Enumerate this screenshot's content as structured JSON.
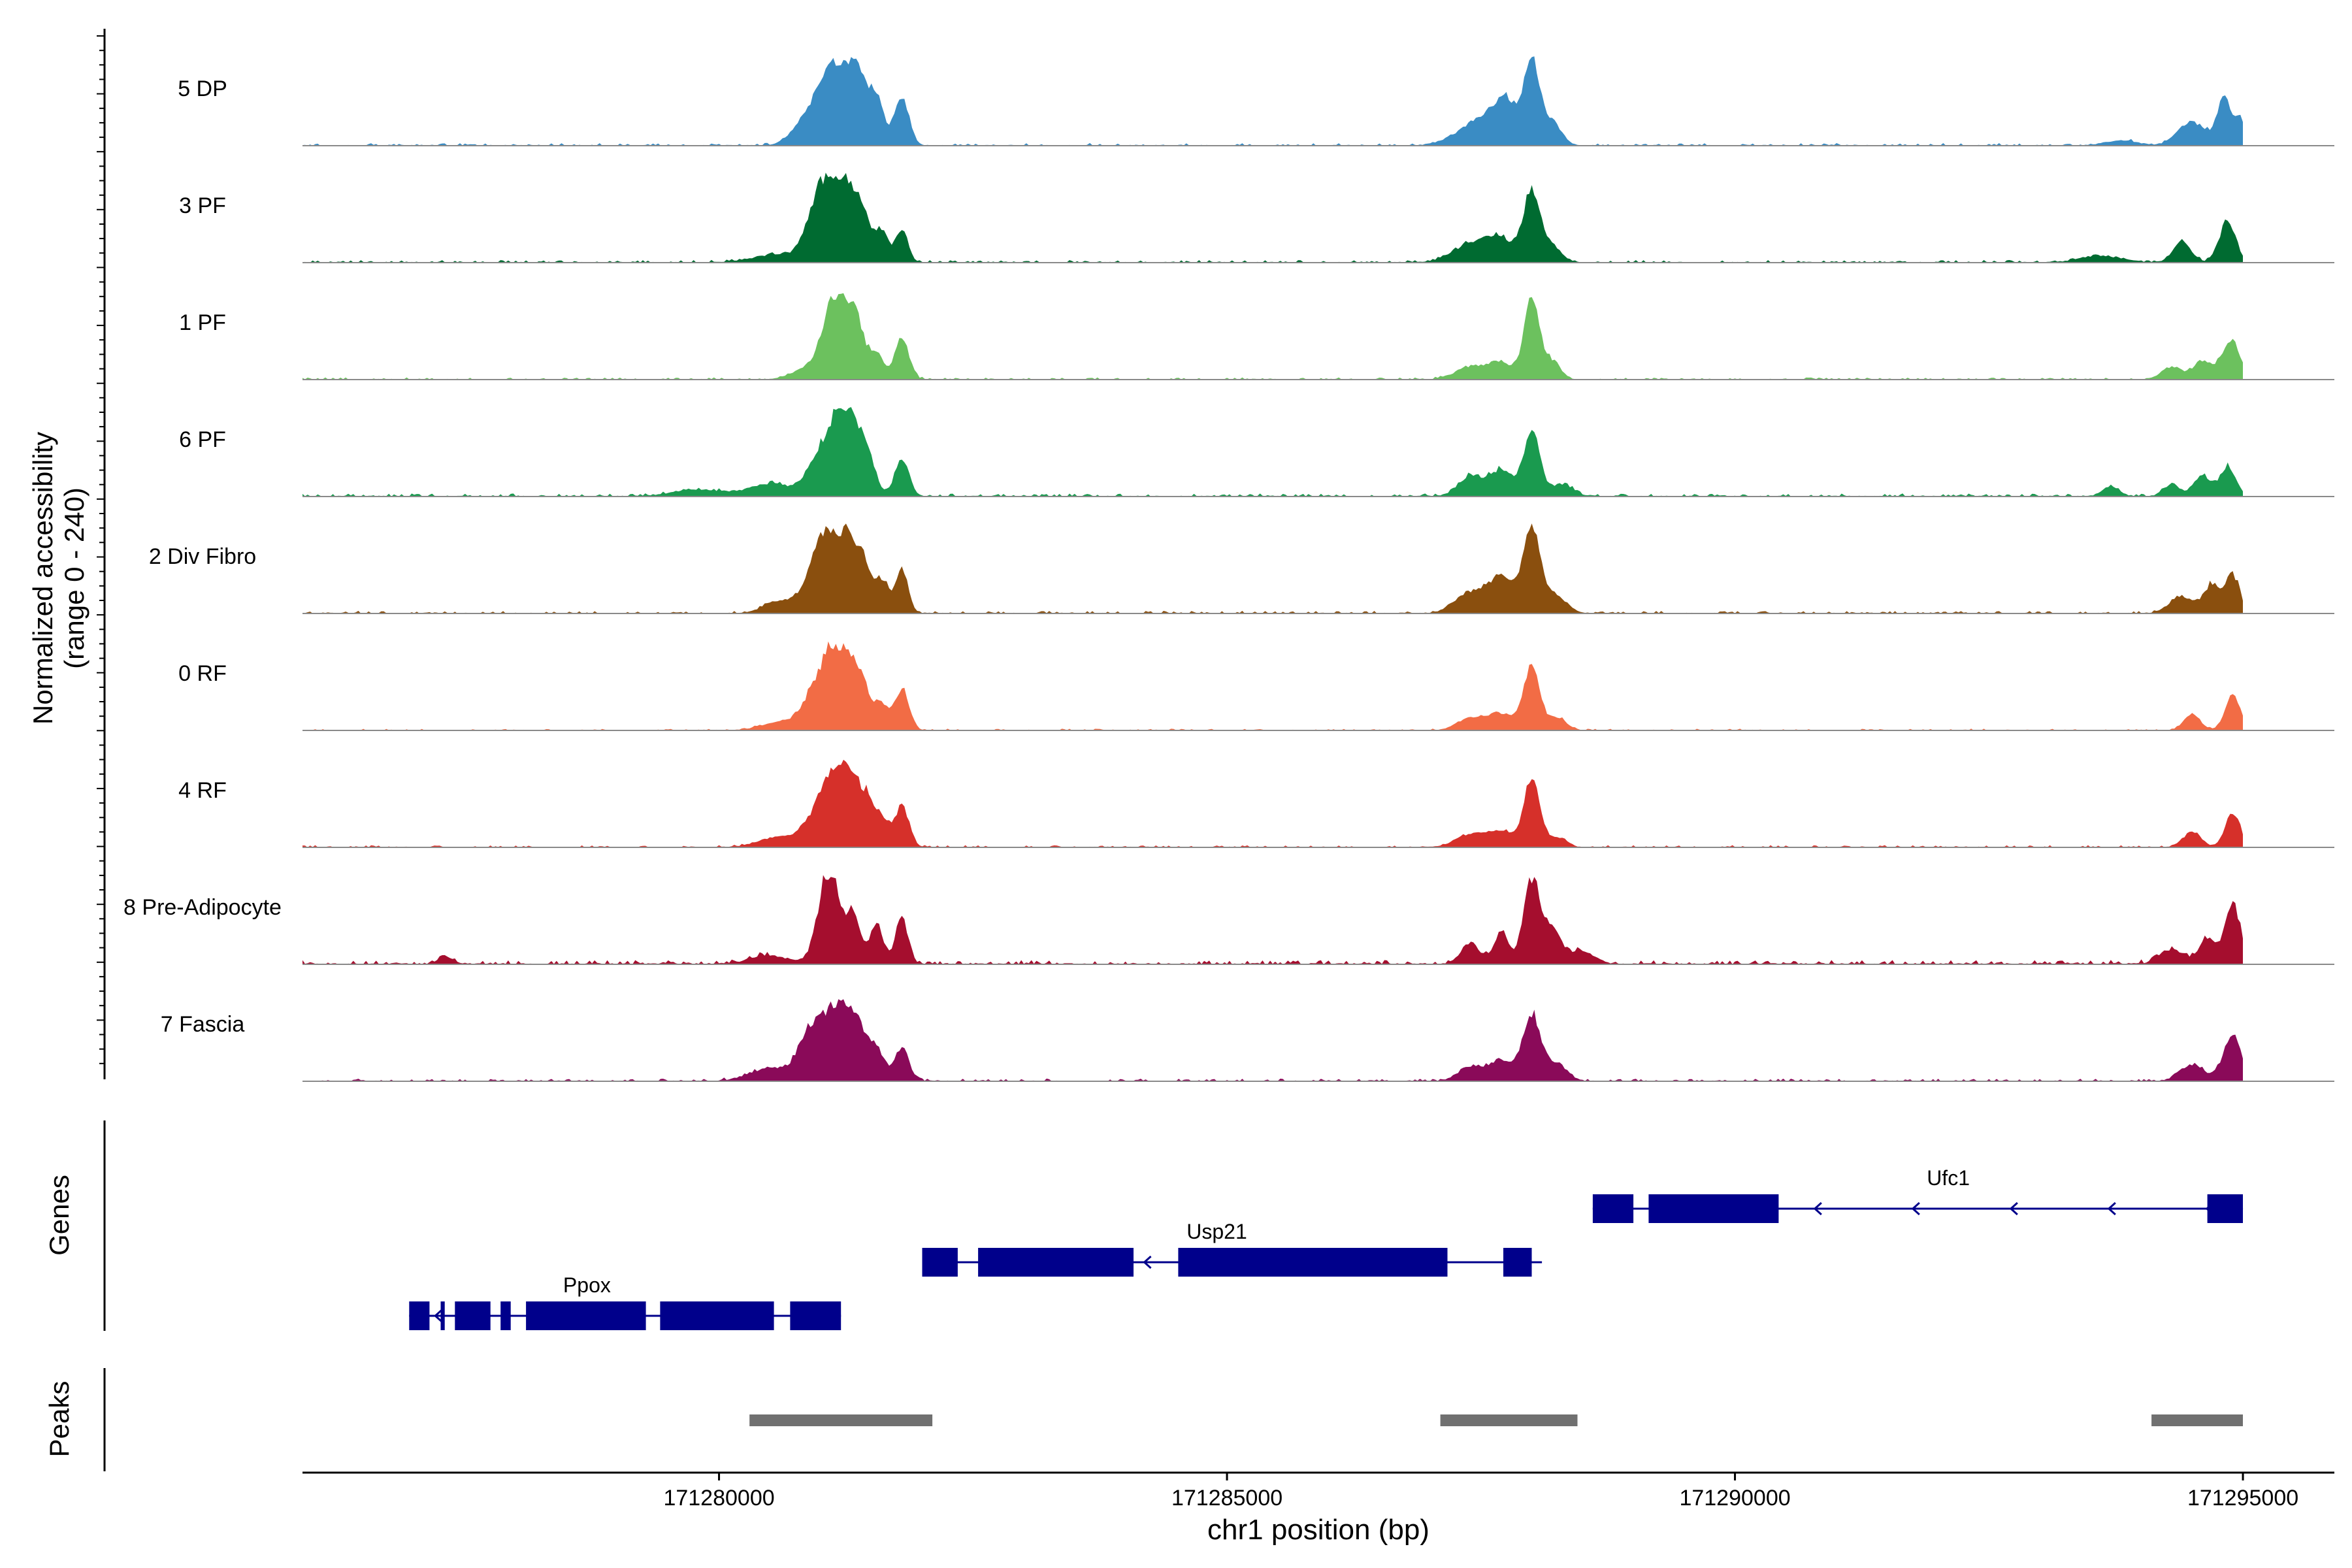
{
  "chart_data": {
    "type": "area",
    "title": "",
    "ylabel_line1": "Normalized accessibility",
    "ylabel_line2": "(range 0 - 240)",
    "ylim": [
      0,
      240
    ],
    "xlabel": "chr1 position (bp)",
    "xlim": [
      171275900,
      171295900
    ],
    "xticks": [
      {
        "value": 171280000,
        "label": "171280000"
      },
      {
        "value": 171285000,
        "label": "171285000"
      },
      {
        "value": 171290000,
        "label": "171290000"
      },
      {
        "value": 171295000,
        "label": "171295000"
      }
    ],
    "signal_range": [
      171275900,
      171295000
    ],
    "series": [
      {
        "name": "5 DP",
        "color": "#3a8cc4",
        "peaks": [
          [
            171281100,
            0.95,
            150
          ],
          [
            171281350,
            0.7,
            110
          ],
          [
            171281550,
            0.48,
            80
          ],
          [
            171281800,
            0.58,
            70
          ],
          [
            171280800,
            0.18,
            120
          ],
          [
            171287500,
            0.3,
            220
          ],
          [
            171287750,
            0.42,
            120
          ],
          [
            171288000,
            1.0,
            75
          ],
          [
            171288200,
            0.28,
            90
          ],
          [
            171293800,
            0.06,
            150
          ],
          [
            171294500,
            0.28,
            140
          ],
          [
            171294820,
            0.55,
            70
          ],
          [
            171294980,
            0.3,
            50
          ]
        ],
        "noise": 0.03
      },
      {
        "name": "3 PF",
        "color": "#006b31",
        "peaks": [
          [
            171281000,
            0.8,
            120
          ],
          [
            171281200,
            0.95,
            110
          ],
          [
            171281400,
            0.55,
            90
          ],
          [
            171281600,
            0.35,
            70
          ],
          [
            171281800,
            0.4,
            60
          ],
          [
            171280600,
            0.1,
            250
          ],
          [
            171287400,
            0.22,
            180
          ],
          [
            171287700,
            0.25,
            150
          ],
          [
            171288000,
            0.85,
            80
          ],
          [
            171288200,
            0.2,
            90
          ],
          [
            171293600,
            0.08,
            200
          ],
          [
            171294400,
            0.25,
            90
          ],
          [
            171294850,
            0.5,
            80
          ]
        ],
        "noise": 0.03
      },
      {
        "name": "1 PF",
        "color": "#6cc15e",
        "peaks": [
          [
            171281150,
            1.0,
            130
          ],
          [
            171281350,
            0.55,
            80
          ],
          [
            171281550,
            0.3,
            70
          ],
          [
            171281800,
            0.5,
            70
          ],
          [
            171280800,
            0.1,
            120
          ],
          [
            171287400,
            0.15,
            150
          ],
          [
            171287700,
            0.2,
            120
          ],
          [
            171288000,
            1.0,
            75
          ],
          [
            171288200,
            0.22,
            80
          ],
          [
            171294300,
            0.15,
            100
          ],
          [
            171294600,
            0.22,
            90
          ],
          [
            171294880,
            0.48,
            90
          ]
        ],
        "noise": 0.025
      },
      {
        "name": "6 PF",
        "color": "#1a9a4f",
        "peaks": [
          [
            171281050,
            0.6,
            150
          ],
          [
            171281250,
            0.85,
            110
          ],
          [
            171281450,
            0.5,
            80
          ],
          [
            171281800,
            0.45,
            70
          ],
          [
            171280500,
            0.15,
            200
          ],
          [
            171279800,
            0.08,
            250
          ],
          [
            171287400,
            0.25,
            120
          ],
          [
            171287700,
            0.3,
            110
          ],
          [
            171288000,
            0.82,
            80
          ],
          [
            171288300,
            0.15,
            100
          ],
          [
            171293700,
            0.12,
            80
          ],
          [
            171294300,
            0.15,
            80
          ],
          [
            171294600,
            0.25,
            80
          ],
          [
            171294850,
            0.35,
            80
          ]
        ],
        "noise": 0.035
      },
      {
        "name": "2 Div Fibro",
        "color": "#8a4f0e",
        "peaks": [
          [
            171281000,
            0.8,
            130
          ],
          [
            171281200,
            0.9,
            110
          ],
          [
            171281400,
            0.6,
            80
          ],
          [
            171281600,
            0.4,
            70
          ],
          [
            171281800,
            0.55,
            60
          ],
          [
            171280600,
            0.15,
            150
          ],
          [
            171287400,
            0.25,
            150
          ],
          [
            171287700,
            0.4,
            120
          ],
          [
            171288000,
            1.0,
            90
          ],
          [
            171288250,
            0.2,
            100
          ],
          [
            171294400,
            0.2,
            120
          ],
          [
            171294700,
            0.35,
            80
          ],
          [
            171294900,
            0.45,
            70
          ]
        ],
        "noise": 0.03
      },
      {
        "name": "0 RF",
        "color": "#f26c45",
        "peaks": [
          [
            171281000,
            0.6,
            140
          ],
          [
            171281200,
            0.9,
            110
          ],
          [
            171281400,
            0.55,
            80
          ],
          [
            171281600,
            0.3,
            70
          ],
          [
            171281800,
            0.5,
            70
          ],
          [
            171280600,
            0.1,
            180
          ],
          [
            171287400,
            0.15,
            130
          ],
          [
            171287700,
            0.2,
            120
          ],
          [
            171288000,
            0.75,
            80
          ],
          [
            171288250,
            0.15,
            90
          ],
          [
            171294500,
            0.2,
            80
          ],
          [
            171294900,
            0.42,
            75
          ]
        ],
        "noise": 0.02
      },
      {
        "name": "4 RF",
        "color": "#d6302a",
        "peaks": [
          [
            171281050,
            0.6,
            150
          ],
          [
            171281250,
            0.92,
            110
          ],
          [
            171281450,
            0.45,
            70
          ],
          [
            171281600,
            0.35,
            70
          ],
          [
            171281800,
            0.5,
            70
          ],
          [
            171280600,
            0.12,
            200
          ],
          [
            171287400,
            0.15,
            150
          ],
          [
            171287700,
            0.18,
            120
          ],
          [
            171288000,
            0.8,
            80
          ],
          [
            171288250,
            0.12,
            90
          ],
          [
            171294500,
            0.18,
            90
          ],
          [
            171294900,
            0.4,
            75
          ]
        ],
        "noise": 0.025
      },
      {
        "name": "8 Pre-Adipocyte",
        "color": "#a50e2e",
        "peaks": [
          [
            171281100,
            1.0,
            70
          ],
          [
            171281300,
            0.65,
            80
          ],
          [
            171281000,
            0.45,
            80
          ],
          [
            171281550,
            0.45,
            70
          ],
          [
            171281800,
            0.58,
            60
          ],
          [
            171280500,
            0.1,
            200
          ],
          [
            171277300,
            0.1,
            60
          ],
          [
            171287400,
            0.25,
            90
          ],
          [
            171287700,
            0.4,
            70
          ],
          [
            171288000,
            1.0,
            80
          ],
          [
            171288200,
            0.4,
            90
          ],
          [
            171288500,
            0.15,
            120
          ],
          [
            171294300,
            0.18,
            120
          ],
          [
            171294650,
            0.3,
            80
          ],
          [
            171294900,
            0.7,
            80
          ]
        ],
        "noise": 0.05
      },
      {
        "name": "7 Fascia",
        "color": "#8a0a59",
        "peaks": [
          [
            171280900,
            0.55,
            120
          ],
          [
            171281150,
            0.75,
            130
          ],
          [
            171281350,
            0.6,
            100
          ],
          [
            171281550,
            0.35,
            80
          ],
          [
            171281800,
            0.4,
            70
          ],
          [
            171280500,
            0.15,
            200
          ],
          [
            171287400,
            0.18,
            120
          ],
          [
            171287700,
            0.25,
            110
          ],
          [
            171288000,
            0.8,
            90
          ],
          [
            171288250,
            0.2,
            100
          ],
          [
            171294500,
            0.2,
            120
          ],
          [
            171294900,
            0.55,
            90
          ]
        ],
        "noise": 0.03
      }
    ],
    "genes_label": "Genes",
    "peaks_label": "Peaks",
    "genes": [
      {
        "name": "Ufc1",
        "strand": "-",
        "start": 171288600,
        "end": 171295000,
        "exons": [
          [
            171288600,
            171289000
          ],
          [
            171289150,
            171290430
          ],
          [
            171294650,
            171295000
          ]
        ]
      },
      {
        "name": "Usp21",
        "strand": "-",
        "start": 171282000,
        "end": 171288100,
        "exons": [
          [
            171282000,
            171282350
          ],
          [
            171282550,
            171284080
          ],
          [
            171284520,
            171287170
          ],
          [
            171287720,
            171288000
          ]
        ]
      },
      {
        "name": "Ppox",
        "strand": "-",
        "start": 171276950,
        "end": 171281200,
        "exons": [
          [
            171276950,
            171277150
          ],
          [
            171277260,
            171277300
          ],
          [
            171277400,
            171277750
          ],
          [
            171277850,
            171277950
          ],
          [
            171278100,
            171279280
          ],
          [
            171279420,
            171280540
          ],
          [
            171280700,
            171281200
          ]
        ]
      }
    ],
    "peak_regions": [
      [
        171280300,
        171282100
      ],
      [
        171287100,
        171288450
      ],
      [
        171294100,
        171295000
      ]
    ]
  }
}
